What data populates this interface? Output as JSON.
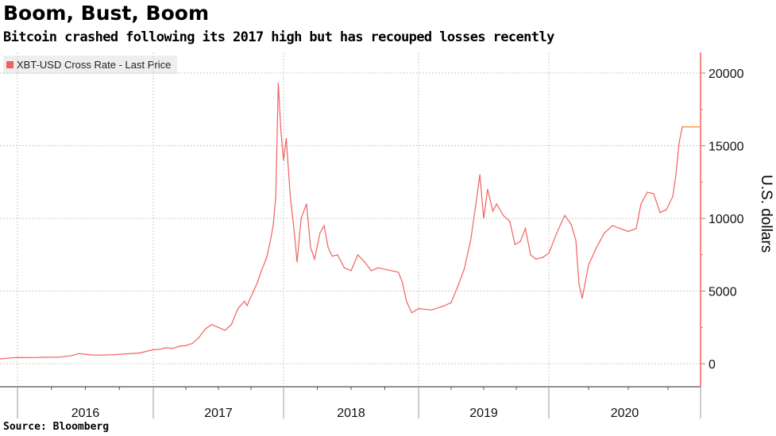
{
  "chart_data": {
    "type": "line",
    "title": "Boom, Bust, Boom",
    "subtitle": "Bitcoin crashed following its 2017 high but has recouped losses recently",
    "source": "Source: Bloomberg",
    "legend": [
      "XBT-USD Cross Rate - Last Price"
    ],
    "legend_placement": "top-left",
    "ylabel": "U.S. dollars",
    "xlabel": "",
    "ylim": [
      -1500,
      21000
    ],
    "yticks": [
      0,
      5000,
      10000,
      15000,
      20000
    ],
    "ytick_labels": [
      "0",
      "5000",
      "10000",
      "15000",
      "20000"
    ],
    "xtick_labels": [
      "2016",
      "2017",
      "2018",
      "2019",
      "2020"
    ],
    "last_price": 16300,
    "colors": {
      "series": "#f0625f",
      "last_price": "#f5a04a",
      "axis": "#f0625f"
    },
    "series": [
      {
        "name": "XBT-USD Cross Rate - Last Price",
        "x": [
          2015.87,
          2015.95,
          2016.0,
          2016.1,
          2016.2,
          2016.3,
          2016.4,
          2016.45,
          2016.5,
          2016.55,
          2016.6,
          2016.7,
          2016.8,
          2016.9,
          2016.97,
          2017.0,
          2017.05,
          2017.1,
          2017.15,
          2017.2,
          2017.25,
          2017.3,
          2017.35,
          2017.4,
          2017.45,
          2017.5,
          2017.55,
          2017.6,
          2017.65,
          2017.7,
          2017.72,
          2017.75,
          2017.8,
          2017.83,
          2017.87,
          2017.9,
          2017.92,
          2017.94,
          2017.96,
          2017.98,
          2018.0,
          2018.02,
          2018.05,
          2018.08,
          2018.1,
          2018.13,
          2018.17,
          2018.2,
          2018.23,
          2018.27,
          2018.3,
          2018.33,
          2018.36,
          2018.4,
          2018.45,
          2018.5,
          2018.55,
          2018.6,
          2018.65,
          2018.7,
          2018.75,
          2018.8,
          2018.85,
          2018.88,
          2018.91,
          2018.95,
          2019.0,
          2019.1,
          2019.2,
          2019.25,
          2019.3,
          2019.35,
          2019.4,
          2019.44,
          2019.47,
          2019.5,
          2019.53,
          2019.57,
          2019.6,
          2019.65,
          2019.7,
          2019.74,
          2019.78,
          2019.82,
          2019.86,
          2019.9,
          2019.95,
          2020.0,
          2020.05,
          2020.1,
          2020.14,
          2020.17,
          2020.19,
          2020.21,
          2020.25,
          2020.3,
          2020.35,
          2020.4,
          2020.45,
          2020.5,
          2020.55,
          2020.58,
          2020.62,
          2020.66,
          2020.7,
          2020.74,
          2020.78,
          2020.8,
          2020.82,
          2020.84,
          2020.85
        ],
        "y": [
          330,
          400,
          430,
          420,
          440,
          450,
          560,
          700,
          650,
          600,
          590,
          620,
          680,
          740,
          900,
          960,
          1000,
          1100,
          1050,
          1200,
          1250,
          1400,
          1800,
          2400,
          2700,
          2500,
          2300,
          2700,
          3800,
          4300,
          4000,
          4600,
          5600,
          6400,
          7300,
          8500,
          9500,
          11500,
          19300,
          16000,
          14000,
          15500,
          11500,
          9000,
          7000,
          10000,
          11000,
          8000,
          7200,
          9000,
          9500,
          8000,
          7400,
          7500,
          6600,
          6400,
          7500,
          7000,
          6400,
          6600,
          6500,
          6400,
          6300,
          5600,
          4300,
          3500,
          3800,
          3700,
          4000,
          4200,
          5300,
          6500,
          8500,
          11000,
          13000,
          10000,
          12000,
          10500,
          11000,
          10200,
          9800,
          8200,
          8400,
          9300,
          7500,
          7200,
          7300,
          7600,
          9000,
          10200,
          9600,
          8500,
          5500,
          4500,
          6800,
          8000,
          9000,
          9500,
          9300,
          9100,
          9300,
          11000,
          11800,
          11700,
          10400,
          10600,
          11500,
          13000,
          15200,
          16300,
          16300
        ]
      }
    ]
  }
}
